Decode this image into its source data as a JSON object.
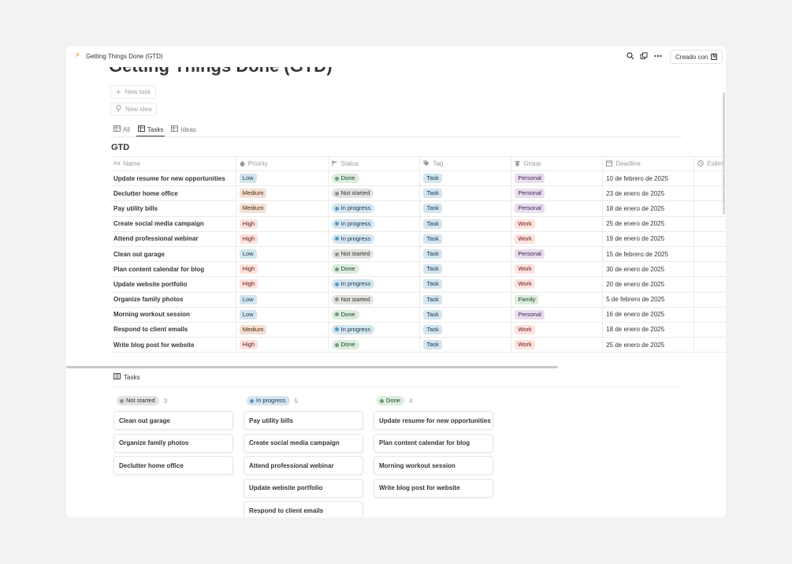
{
  "topbar": {
    "breadcrumb": "Getting Things Done (GTD)",
    "made_with": "Creado con"
  },
  "page": {
    "title": "Getting Things Done (GTD)",
    "new_task": "New task",
    "new_idea": "New idea"
  },
  "views": [
    {
      "label": "All"
    },
    {
      "label": "Tasks"
    },
    {
      "label": "Ideas"
    }
  ],
  "database": {
    "title": "GTD",
    "columns": [
      "Name",
      "Priority",
      "Status",
      "Tag",
      "Group",
      "Deadline",
      "Estim"
    ],
    "rows": [
      {
        "name": "Update resume for new opportunities",
        "priority": "Low",
        "status": "Done",
        "tag": "Task",
        "group": "Personal",
        "deadline": "10 de febrero de 2025"
      },
      {
        "name": "Declutter home office",
        "priority": "Medium",
        "status": "Not started",
        "tag": "Task",
        "group": "Personal",
        "deadline": "23 de enero de 2025"
      },
      {
        "name": "Pay utility bills",
        "priority": "Medium",
        "status": "In progress",
        "tag": "Task",
        "group": "Personal",
        "deadline": "18 de enero de 2025"
      },
      {
        "name": "Create social media campaign",
        "priority": "High",
        "status": "In progress",
        "tag": "Task",
        "group": "Work",
        "deadline": "25 de enero de 2025"
      },
      {
        "name": "Attend professional webinar",
        "priority": "High",
        "status": "In progress",
        "tag": "Task",
        "group": "Work",
        "deadline": "19 de enero de 2025"
      },
      {
        "name": "Clean out garage",
        "priority": "Low",
        "status": "Not started",
        "tag": "Task",
        "group": "Personal",
        "deadline": "15 de febrero de 2025"
      },
      {
        "name": "Plan content calendar for blog",
        "priority": "High",
        "status": "Done",
        "tag": "Task",
        "group": "Work",
        "deadline": "30 de enero de 2025"
      },
      {
        "name": "Update website portfolio",
        "priority": "High",
        "status": "In progress",
        "tag": "Task",
        "group": "Work",
        "deadline": "20 de enero de 2025"
      },
      {
        "name": "Organize family photos",
        "priority": "Low",
        "status": "Not started",
        "tag": "Task",
        "group": "Family",
        "deadline": "5 de febrero de 2025"
      },
      {
        "name": "Morning workout session",
        "priority": "Low",
        "status": "Done",
        "tag": "Task",
        "group": "Personal",
        "deadline": "16 de enero de 2025"
      },
      {
        "name": "Respond to client emails",
        "priority": "Medium",
        "status": "In progress",
        "tag": "Task",
        "group": "Work",
        "deadline": "18 de enero de 2025"
      },
      {
        "name": "Write blog post for website",
        "priority": "High",
        "status": "Done",
        "tag": "Task",
        "group": "Work",
        "deadline": "25 de enero de 2025"
      }
    ]
  },
  "board": {
    "title": "Tasks",
    "columns": [
      {
        "label": "Not started",
        "count": "3",
        "cards": [
          "Clean out garage",
          "Organize family photos",
          "Declutter home office"
        ]
      },
      {
        "label": "In progress",
        "count": "5",
        "cards": [
          "Pay utility bills",
          "Create social media campaign",
          "Attend professional webinar",
          "Update website portfolio",
          "Respond to client emails"
        ]
      },
      {
        "label": "Done",
        "count": "4",
        "cards": [
          "Update resume for new opportunities",
          "Plan content calendar for blog",
          "Morning workout session",
          "Write blog post for website"
        ]
      }
    ]
  },
  "colors": {
    "priority": {
      "Low": [
        "#d3e5ef",
        "#183347"
      ],
      "Medium": [
        "#f4dfd4",
        "#49290e"
      ],
      "High": [
        "#ffe2dd",
        "#5d1715"
      ]
    },
    "status": {
      "Done": [
        "#dbeddb",
        "#1c3829",
        "#6c9b7d"
      ],
      "Not started": [
        "#e3e2e0",
        "#32302c",
        "#91918e"
      ],
      "In progress": [
        "#d3e5ef",
        "#183347",
        "#5b97bd"
      ]
    },
    "tag": {
      "Task": [
        "#d3e5ef",
        "#183347"
      ]
    },
    "group": {
      "Personal": [
        "#e8deee",
        "#412454"
      ],
      "Work": [
        "#ffe2dd",
        "#5d1715"
      ],
      "Family": [
        "#dbeddb",
        "#1c3829"
      ]
    }
  }
}
